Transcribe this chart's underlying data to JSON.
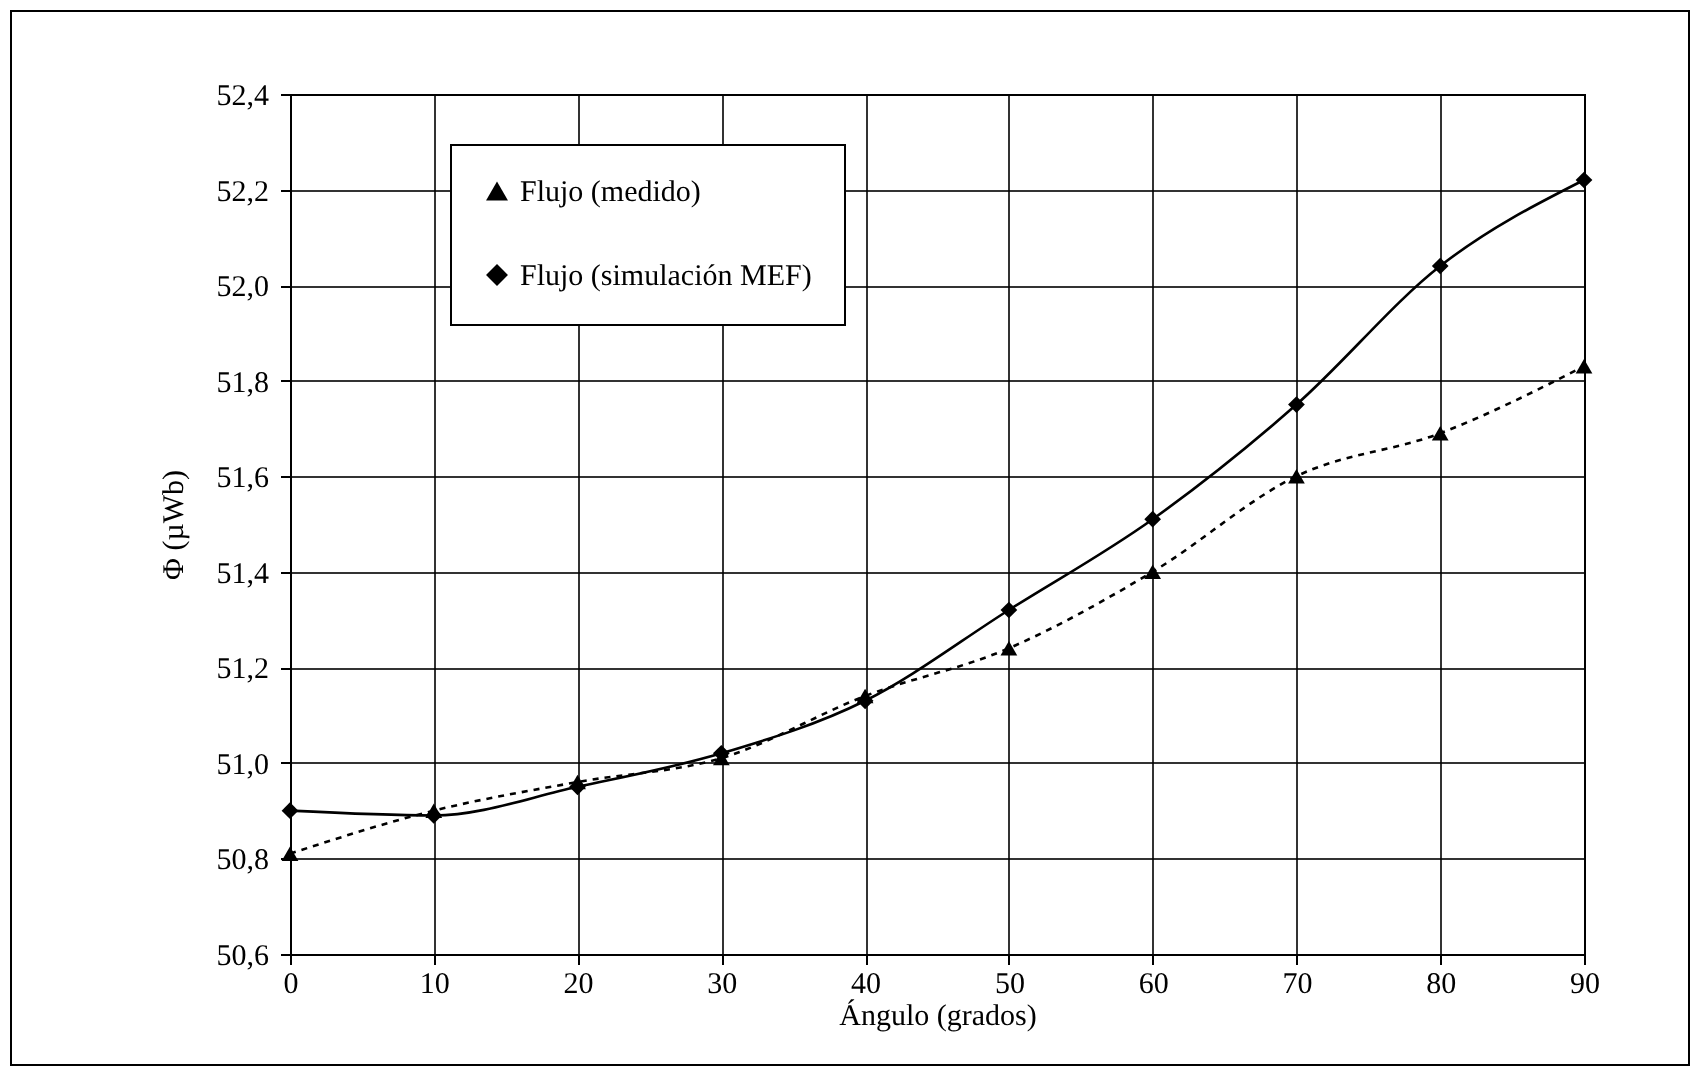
{
  "chart_data": {
    "type": "line",
    "xlabel": "Ángulo (grados)",
    "ylabel": "Φ (µWb)",
    "x": [
      0,
      10,
      20,
      30,
      40,
      50,
      60,
      70,
      80,
      90
    ],
    "xlim": [
      0,
      90
    ],
    "xticks": [
      0,
      10,
      20,
      30,
      40,
      50,
      60,
      70,
      80,
      90
    ],
    "ylim": [
      50.6,
      52.4
    ],
    "yticks": [
      {
        "value": 50.6,
        "label": "50,6"
      },
      {
        "value": 50.8,
        "label": "50,8"
      },
      {
        "value": 51.0,
        "label": "51,0"
      },
      {
        "value": 51.2,
        "label": "51,2"
      },
      {
        "value": 51.4,
        "label": "51,4"
      },
      {
        "value": 51.6,
        "label": "51,6"
      },
      {
        "value": 51.8,
        "label": "51,8"
      },
      {
        "value": 52.0,
        "label": "52,0"
      },
      {
        "value": 52.2,
        "label": "52,2"
      },
      {
        "value": 52.4,
        "label": "52,4"
      }
    ],
    "grid": true,
    "legend": "top left",
    "series": [
      {
        "name": "Flujo (medido)",
        "color": "#000000",
        "marker": "triangle",
        "line_style": "dotted",
        "values": [
          50.81,
          50.9,
          50.96,
          51.01,
          51.14,
          51.24,
          51.4,
          51.6,
          51.69,
          51.83
        ]
      },
      {
        "name": "Flujo (simulación MEF)",
        "color": "#000000",
        "marker": "diamond",
        "line_style": "solid",
        "values": [
          50.9,
          50.89,
          50.95,
          51.02,
          51.13,
          51.32,
          51.51,
          51.75,
          52.04,
          52.22
        ]
      }
    ]
  }
}
